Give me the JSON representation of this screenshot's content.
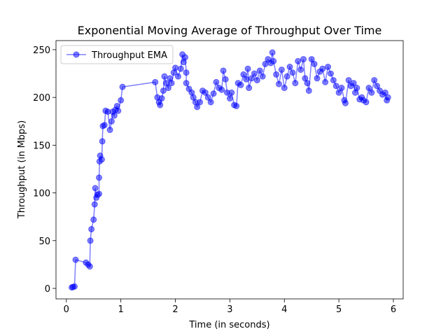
{
  "chart_data": {
    "type": "line",
    "title": "Exponential Moving Average of Throughput Over Time",
    "x_label": "Time (in seconds)",
    "y_label": "Throughput (in Mbps)",
    "x": [
      0.1,
      0.12,
      0.15,
      0.17,
      0.36,
      0.4,
      0.43,
      0.44,
      0.46,
      0.5,
      0.52,
      0.53,
      0.55,
      0.57,
      0.6,
      0.6,
      0.61,
      0.62,
      0.65,
      0.66,
      0.67,
      0.7,
      0.72,
      0.76,
      0.8,
      0.83,
      0.85,
      0.88,
      0.9,
      0.93,
      0.95,
      1.0,
      1.03,
      1.63,
      1.67,
      1.7,
      1.72,
      1.75,
      1.78,
      1.8,
      1.83,
      1.87,
      1.9,
      1.93,
      1.97,
      2.0,
      2.05,
      2.1,
      2.13,
      2.15,
      2.18,
      2.2,
      2.2,
      2.25,
      2.3,
      2.33,
      2.37,
      2.4,
      2.45,
      2.5,
      2.55,
      2.6,
      2.65,
      2.7,
      2.75,
      2.8,
      2.85,
      2.88,
      2.92,
      2.95,
      3.0,
      3.03,
      3.08,
      3.12,
      3.15,
      3.2,
      3.25,
      3.3,
      3.33,
      3.35,
      3.4,
      3.45,
      3.5,
      3.55,
      3.6,
      3.65,
      3.7,
      3.75,
      3.78,
      3.8,
      3.85,
      3.9,
      3.95,
      4.0,
      4.05,
      4.1,
      4.15,
      4.2,
      4.25,
      4.3,
      4.35,
      4.38,
      4.42,
      4.45,
      4.5,
      4.55,
      4.6,
      4.65,
      4.7,
      4.75,
      4.8,
      4.85,
      4.9,
      4.95,
      5.0,
      5.05,
      5.1,
      5.12,
      5.18,
      5.22,
      5.27,
      5.3,
      5.33,
      5.38,
      5.42,
      5.45,
      5.5,
      5.55,
      5.6,
      5.65,
      5.7,
      5.75,
      5.8,
      5.85,
      5.88,
      5.9
    ],
    "series": [
      {
        "name": "Throughput EMA",
        "color": "#0000ff",
        "values": [
          1,
          1.5,
          2,
          30,
          27,
          25,
          23,
          50,
          62,
          72,
          88,
          105,
          95,
          98,
          99,
          116,
          133,
          139,
          135,
          154,
          170,
          171,
          186,
          185,
          166,
          175,
          185,
          181,
          187,
          191,
          186,
          197,
          211,
          216,
          200,
          195,
          192,
          199,
          207,
          222,
          215,
          210,
          220,
          215,
          226,
          231,
          222,
          230,
          245,
          237,
          242,
          226,
          215,
          209,
          205,
          200,
          195,
          190,
          195,
          207,
          205,
          200,
          195,
          204,
          216,
          210,
          208,
          228,
          219,
          205,
          199,
          205,
          192,
          191,
          215,
          213,
          224,
          219,
          230,
          210,
          220,
          225,
          218,
          228,
          222,
          235,
          240,
          236,
          247,
          238,
          224,
          214,
          229,
          210,
          222,
          232,
          226,
          215,
          238,
          229,
          240,
          220,
          215,
          207,
          240,
          235,
          220,
          227,
          230,
          216,
          232,
          225,
          218,
          212,
          205,
          210,
          197,
          194,
          218,
          212,
          215,
          205,
          210,
          198,
          200,
          197,
          195,
          210,
          205,
          218,
          212,
          207,
          203,
          205,
          197,
          200
        ]
      }
    ],
    "xlim": [
      -0.19,
      6.18
    ],
    "ylim": [
      -11,
      259.5
    ],
    "xticks": [
      0,
      1,
      2,
      3,
      4,
      5,
      6
    ],
    "yticks": [
      0,
      50,
      100,
      150,
      200,
      250
    ],
    "legend": "upper left"
  }
}
